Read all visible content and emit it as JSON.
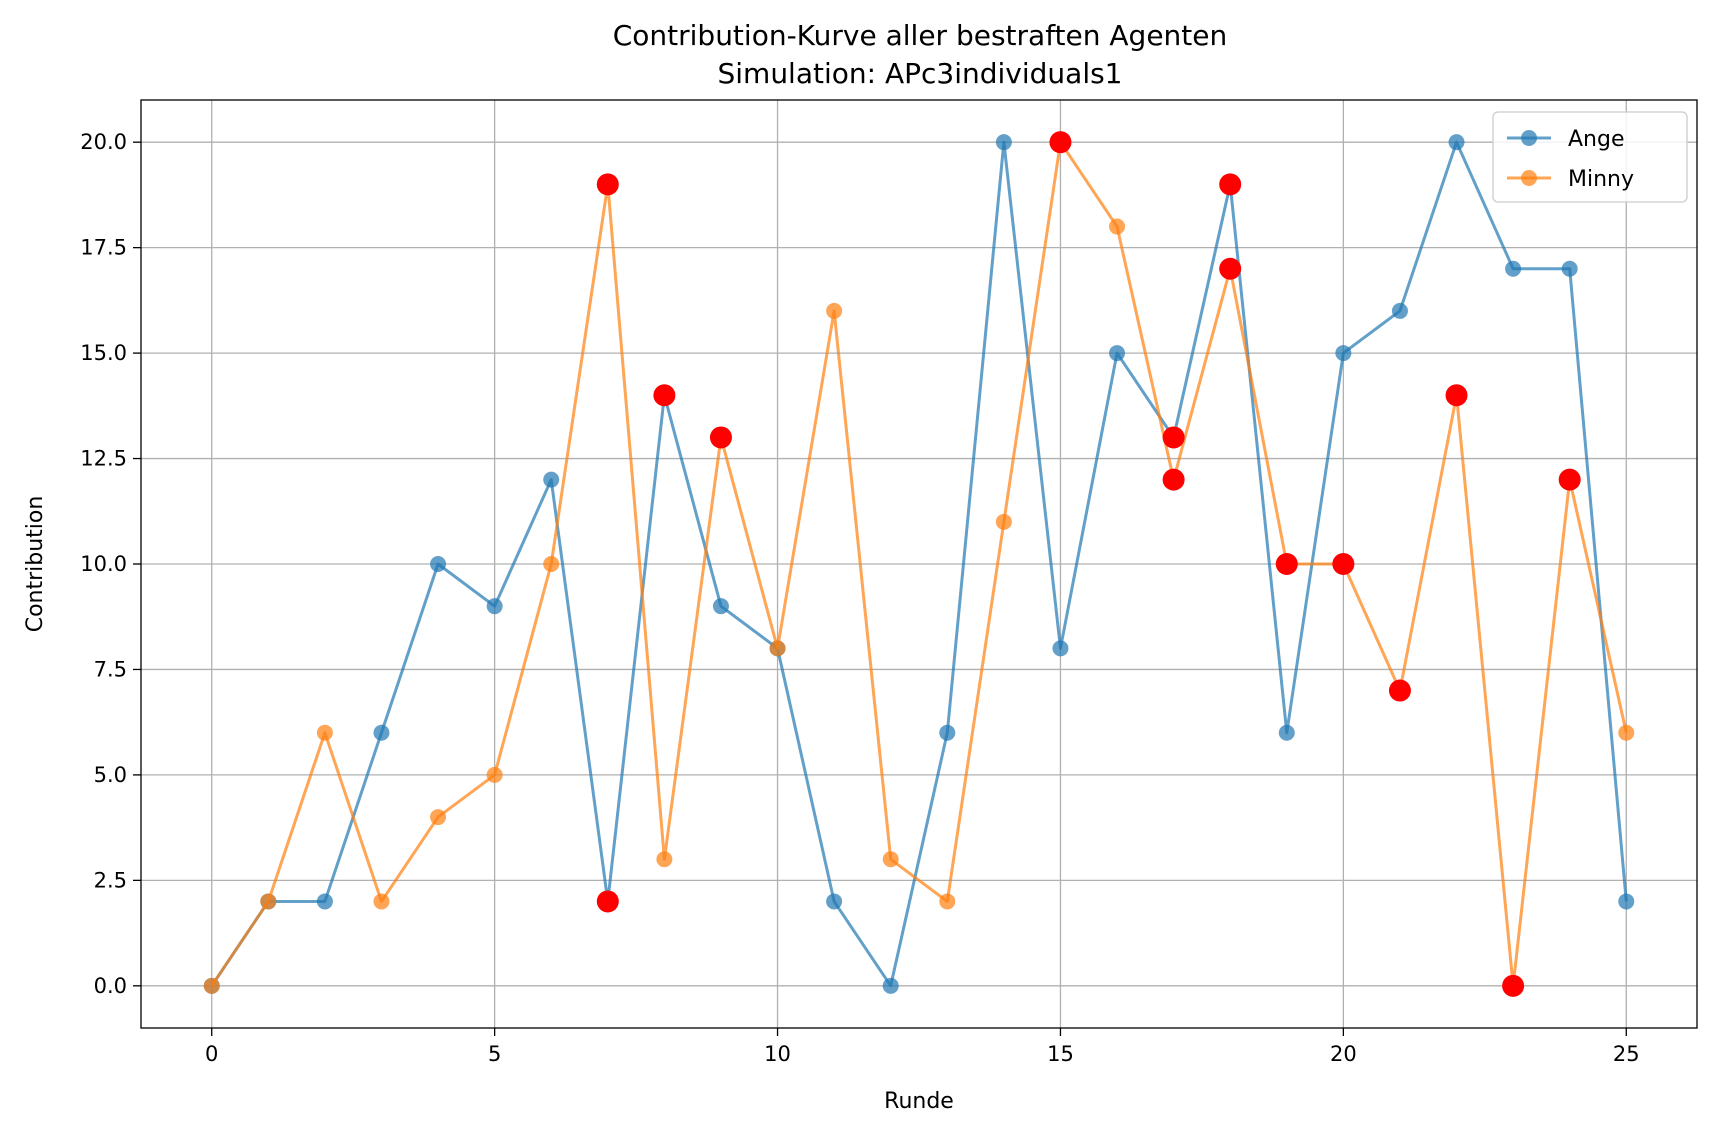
{
  "chart_data": {
    "type": "line",
    "title": "Contribution-Kurve aller bestraften Agenten",
    "subtitle": "Simulation: APc3individuals1",
    "xlabel": "Runde",
    "ylabel": "Contribution",
    "xlim": [
      -1.25,
      26.25
    ],
    "ylim": [
      -1.0,
      21.0
    ],
    "grid": true,
    "legend_position": "top-right",
    "x_ticks": [
      0,
      5,
      10,
      15,
      20,
      25
    ],
    "x_tick_labels": [
      "0",
      "5",
      "10",
      "15",
      "20",
      "25"
    ],
    "y_ticks": [
      0,
      2.5,
      5,
      7.5,
      10,
      12.5,
      15,
      17.5,
      20
    ],
    "y_tick_labels": [
      "0.0",
      "2.5",
      "5.0",
      "7.5",
      "10.0",
      "12.5",
      "15.0",
      "17.5",
      "20.0"
    ],
    "x": [
      0,
      1,
      2,
      3,
      4,
      5,
      6,
      7,
      8,
      9,
      10,
      11,
      12,
      13,
      14,
      15,
      16,
      17,
      18,
      19,
      20,
      21,
      22,
      23,
      24,
      25
    ],
    "series": [
      {
        "name": "Ange",
        "color": "#1f77b4",
        "values": [
          0,
          2,
          2,
          6,
          10,
          9,
          12,
          2,
          14,
          9,
          8,
          2,
          0,
          6,
          20,
          8,
          15,
          13,
          19,
          6,
          15,
          16,
          20,
          17,
          17,
          2
        ]
      },
      {
        "name": "Minny",
        "color": "#ff7f0e",
        "values": [
          0,
          2,
          6,
          2,
          4,
          5,
          10,
          19,
          3,
          13,
          8,
          16,
          3,
          2,
          11,
          20,
          18,
          12,
          17,
          10,
          10,
          7,
          14,
          0,
          12,
          6
        ]
      }
    ],
    "punished_marker_color": "#ff0000",
    "punished_points": [
      {
        "series": "Ange",
        "x": 7,
        "y": 2
      },
      {
        "series": "Ange",
        "x": 8,
        "y": 14
      },
      {
        "series": "Ange",
        "x": 17,
        "y": 13
      },
      {
        "series": "Ange",
        "x": 18,
        "y": 19
      },
      {
        "series": "Minny",
        "x": 7,
        "y": 19
      },
      {
        "series": "Minny",
        "x": 9,
        "y": 13
      },
      {
        "series": "Minny",
        "x": 15,
        "y": 20
      },
      {
        "series": "Minny",
        "x": 17,
        "y": 12
      },
      {
        "series": "Minny",
        "x": 18,
        "y": 17
      },
      {
        "series": "Minny",
        "x": 19,
        "y": 10
      },
      {
        "series": "Minny",
        "x": 20,
        "y": 10
      },
      {
        "series": "Minny",
        "x": 21,
        "y": 7
      },
      {
        "series": "Minny",
        "x": 22,
        "y": 14
      },
      {
        "series": "Minny",
        "x": 23,
        "y": 0
      },
      {
        "series": "Minny",
        "x": 24,
        "y": 12
      }
    ]
  }
}
